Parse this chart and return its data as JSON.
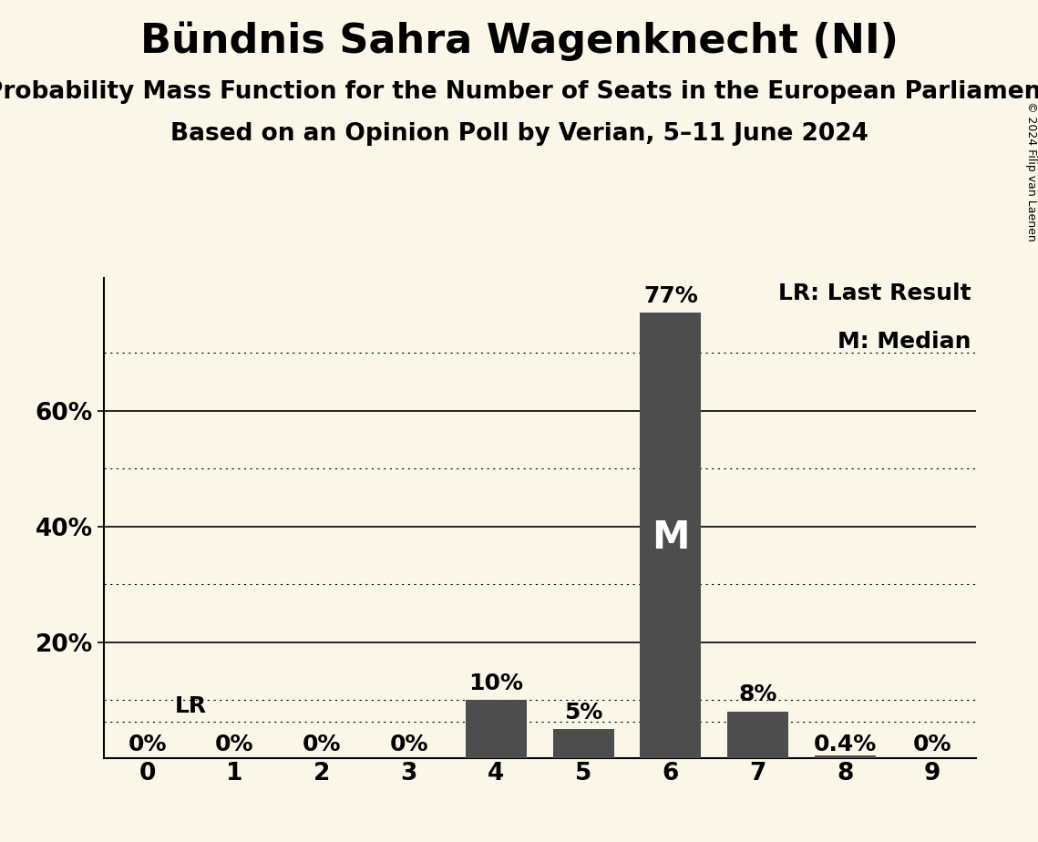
{
  "title": "Bündnis Sahra Wagenknecht (NI)",
  "subtitle1": "Probability Mass Function for the Number of Seats in the European Parliament",
  "subtitle2": "Based on an Opinion Poll by Verian, 5–11 June 2024",
  "copyright": "© 2024 Filip van Laenen",
  "seats": [
    0,
    1,
    2,
    3,
    4,
    5,
    6,
    7,
    8,
    9
  ],
  "probabilities": [
    0.0,
    0.0,
    0.0,
    0.0,
    0.1,
    0.05,
    0.77,
    0.08,
    0.004,
    0.0
  ],
  "bar_color": "#4d4d4d",
  "background_color": "#faf6e8",
  "median_seat": 6,
  "lr_value": 0.062,
  "yticks_solid": [
    0.2,
    0.4,
    0.6
  ],
  "yticks_dotted": [
    0.1,
    0.3,
    0.5,
    0.7
  ],
  "ylim": [
    0,
    0.83
  ],
  "xlim": [
    -0.5,
    9.5
  ],
  "legend_lr": "LR: Last Result",
  "legend_m": "M: Median",
  "bar_labels": [
    "0%",
    "0%",
    "0%",
    "0%",
    "10%",
    "5%",
    "77%",
    "8%",
    "0.4%",
    "0%"
  ],
  "title_fontsize": 32,
  "subtitle1_fontsize": 19,
  "subtitle2_fontsize": 19,
  "tick_fontsize": 19,
  "legend_fontsize": 18,
  "bar_label_fontsize": 18,
  "median_label_fontsize": 30,
  "copyright_fontsize": 9
}
